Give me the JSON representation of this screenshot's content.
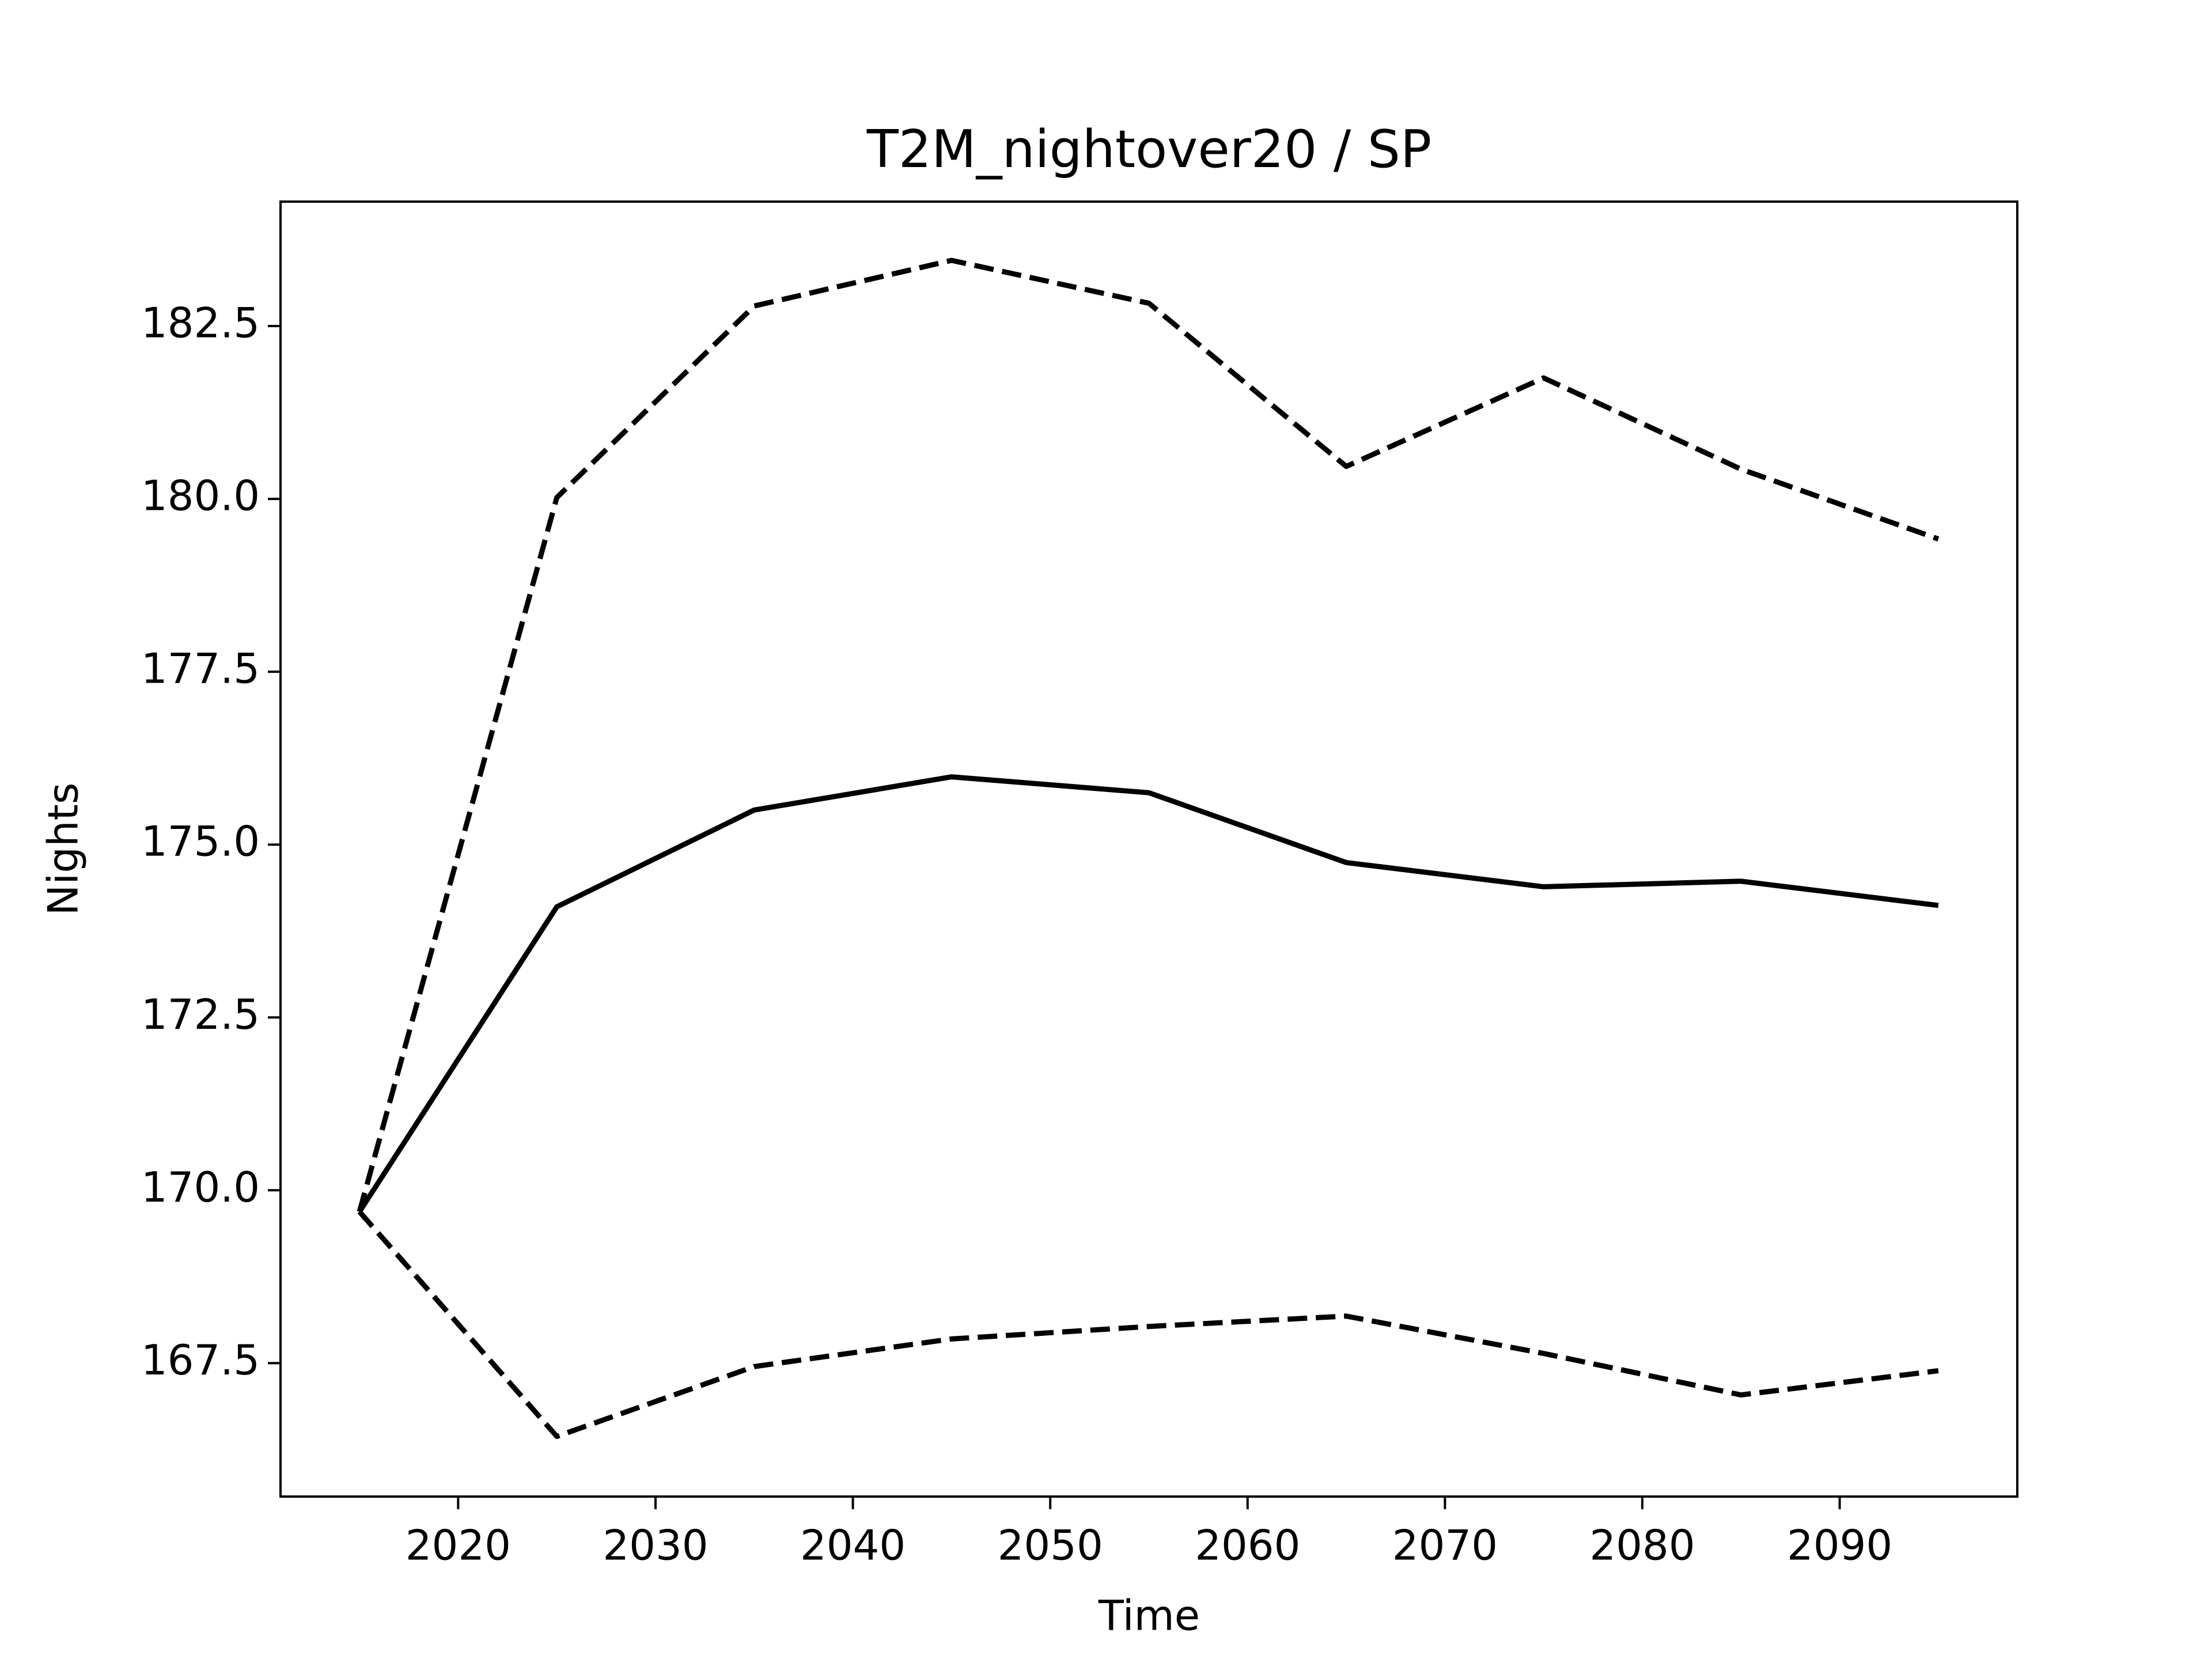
{
  "chart_data": {
    "type": "line",
    "title": "T2M_nightover20 / SP",
    "x_label": "Time",
    "y_label": "Nights",
    "x": [
      2015,
      2025,
      2035,
      2045,
      2055,
      2065,
      2075,
      2085,
      2095
    ],
    "series": [
      {
        "color": "#000000",
        "dashed": false,
        "values": [
          169.69,
          174.1,
          175.5,
          175.98,
          175.75,
          174.74,
          174.39,
          174.47,
          174.12
        ]
      },
      {
        "color": "#000000",
        "dashed": true,
        "values": [
          169.69,
          180.02,
          182.79,
          183.45,
          182.83,
          180.47,
          181.75,
          180.43,
          179.42
        ]
      },
      {
        "color": "#000000",
        "dashed": true,
        "values": [
          169.69,
          166.44,
          167.45,
          167.85,
          168.03,
          168.18,
          167.64,
          167.04,
          167.39
        ]
      }
    ],
    "xlim": [
      2011,
      2099
    ],
    "ylim": [
      165.57,
      184.3
    ],
    "xticks": [
      2020,
      2030,
      2040,
      2050,
      2060,
      2070,
      2080,
      2090
    ],
    "yticks": [
      167.5,
      {
        "value": 170,
        "label": "170.0"
      },
      172.5,
      {
        "value": 175,
        "label": "175.0"
      },
      177.5,
      {
        "value": 180,
        "label": "180.0"
      },
      182.5
    ],
    "grid": false
  }
}
